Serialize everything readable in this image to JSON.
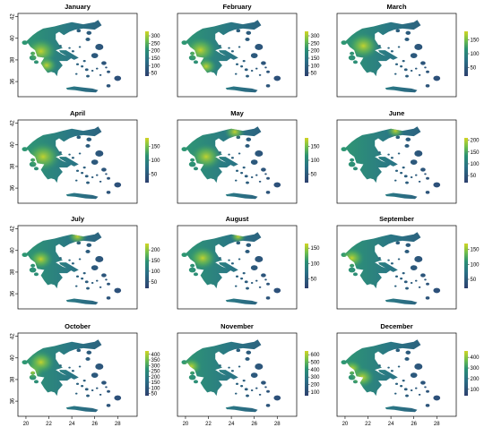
{
  "figure": {
    "panels": [
      {
        "title": "January",
        "legend_ticks": [
          "300",
          "250",
          "200",
          "150",
          "100",
          "50"
        ],
        "legend_range": [
          30,
          330
        ],
        "has_y_axis": true,
        "has_x_axis": false
      },
      {
        "title": "February",
        "legend_ticks": [
          "300",
          "250",
          "200",
          "150",
          "100",
          "50"
        ],
        "legend_range": [
          30,
          330
        ],
        "has_y_axis": false,
        "has_x_axis": false
      },
      {
        "title": "March",
        "legend_ticks": [
          "150",
          "100",
          "50"
        ],
        "legend_range": [
          20,
          180
        ],
        "has_y_axis": false,
        "has_x_axis": false
      },
      {
        "title": "April",
        "legend_ticks": [
          "150",
          "100",
          "50"
        ],
        "legend_range": [
          20,
          180
        ],
        "has_y_axis": true,
        "has_x_axis": false
      },
      {
        "title": "May",
        "legend_ticks": [
          "150",
          "100",
          "50"
        ],
        "legend_range": [
          20,
          180
        ],
        "has_y_axis": false,
        "has_x_axis": false
      },
      {
        "title": "June",
        "legend_ticks": [
          "200",
          "150",
          "100",
          "50"
        ],
        "legend_range": [
          20,
          210
        ],
        "has_y_axis": false,
        "has_x_axis": false
      },
      {
        "title": "July",
        "legend_ticks": [
          "200",
          "150",
          "100",
          "50"
        ],
        "legend_range": [
          20,
          230
        ],
        "has_y_axis": true,
        "has_x_axis": false
      },
      {
        "title": "August",
        "legend_ticks": [
          "150",
          "100",
          "50"
        ],
        "legend_range": [
          20,
          165
        ],
        "has_y_axis": false,
        "has_x_axis": false
      },
      {
        "title": "September",
        "legend_ticks": [
          "150",
          "100",
          "50"
        ],
        "legend_range": [
          20,
          170
        ],
        "has_y_axis": false,
        "has_x_axis": false
      },
      {
        "title": "October",
        "legend_ticks": [
          "400",
          "350",
          "300",
          "250",
          "200",
          "150",
          "100",
          "50"
        ],
        "legend_range": [
          30,
          430
        ],
        "has_y_axis": true,
        "has_x_axis": true
      },
      {
        "title": "November",
        "legend_ticks": [
          "600",
          "500",
          "400",
          "300",
          "200",
          "100"
        ],
        "legend_range": [
          50,
          650
        ],
        "has_y_axis": false,
        "has_x_axis": true
      },
      {
        "title": "December",
        "legend_ticks": [
          "400",
          "300",
          "200",
          "100"
        ],
        "legend_range": [
          40,
          460
        ],
        "has_y_axis": false,
        "has_x_axis": true
      }
    ],
    "y_ticks": [
      "42",
      "40",
      "38",
      "36"
    ],
    "y_tick_values": [
      42,
      40,
      38,
      36
    ],
    "x_ticks": [
      "20",
      "22",
      "24",
      "26",
      "28"
    ],
    "x_tick_values": [
      20,
      22,
      24,
      26,
      28
    ],
    "lon_range": [
      19.3,
      29.7
    ],
    "lat_range": [
      34.6,
      42.3
    ],
    "colormap": "viridis",
    "colors": {
      "low": "#2d3f6e",
      "mid": "#2a9073",
      "high": "#d1d423",
      "frame": "#000000",
      "background": "#ffffff"
    }
  }
}
